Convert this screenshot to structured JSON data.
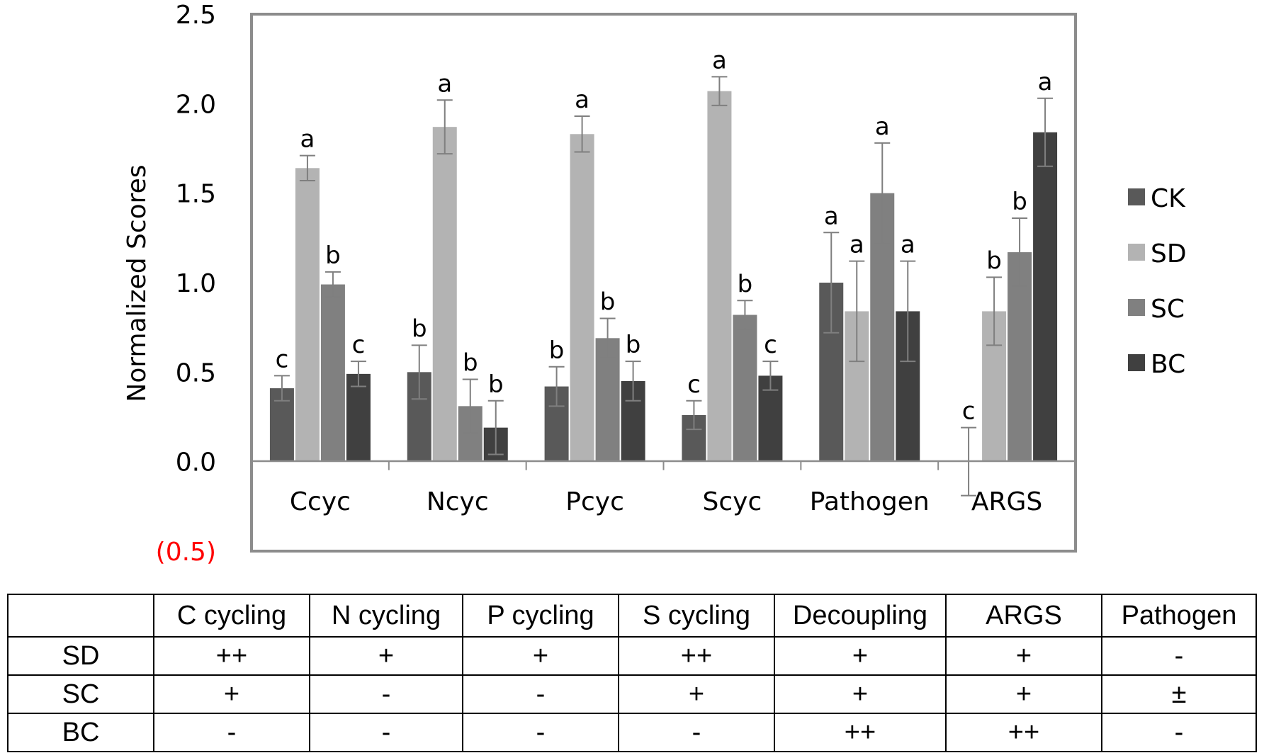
{
  "chart_data": {
    "type": "bar",
    "title": "",
    "xlabel": "",
    "ylabel": "Normalized Scores",
    "ylim": [
      -0.5,
      2.5
    ],
    "yticks": [
      "2.5",
      "2.0",
      "1.5",
      "1.0",
      "0.5",
      "0.0",
      "(0.5)"
    ],
    "ytick_values": [
      2.5,
      2.0,
      1.5,
      1.0,
      0.5,
      0.0,
      -0.5
    ],
    "negative_tick_color": "#ff0000",
    "categories": [
      "Ccyc",
      "Ncyc",
      "Pcyc",
      "Scyc",
      "Pathogen",
      "ARGS"
    ],
    "legend_position": "right",
    "series": [
      {
        "name": "CK",
        "color": "#595959",
        "values": [
          0.41,
          0.5,
          0.42,
          0.26,
          1.0,
          0.0
        ],
        "errors": [
          0.07,
          0.15,
          0.11,
          0.08,
          0.28,
          0.19
        ],
        "letters": [
          "c",
          "b",
          "b",
          "c",
          "a",
          "c"
        ]
      },
      {
        "name": "SD",
        "color": "#b3b3b3",
        "values": [
          1.64,
          1.87,
          1.83,
          2.07,
          0.84,
          0.84
        ],
        "errors": [
          0.07,
          0.15,
          0.1,
          0.08,
          0.28,
          0.19
        ],
        "letters": [
          "a",
          "a",
          "a",
          "a",
          "a",
          "b"
        ]
      },
      {
        "name": "SC",
        "color": "#808080",
        "values": [
          0.99,
          0.31,
          0.69,
          0.82,
          1.5,
          1.17
        ],
        "errors": [
          0.07,
          0.15,
          0.11,
          0.08,
          0.28,
          0.19
        ],
        "letters": [
          "b",
          "b",
          "b",
          "b",
          "a",
          "b"
        ]
      },
      {
        "name": "BC",
        "color": "#404040",
        "values": [
          0.49,
          0.19,
          0.45,
          0.48,
          0.84,
          1.84
        ],
        "errors": [
          0.07,
          0.15,
          0.11,
          0.08,
          0.28,
          0.19
        ],
        "letters": [
          "c",
          "b",
          "b",
          "c",
          "a",
          "a"
        ]
      }
    ]
  },
  "table": {
    "columns": [
      "",
      "C cycling",
      "N cycling",
      "P cycling",
      "S cycling",
      "Decoupling",
      "ARGS",
      "Pathogen"
    ],
    "rows": [
      {
        "label": "SD",
        "cells": [
          "++",
          "+",
          "+",
          "++",
          "+",
          "+",
          "-"
        ]
      },
      {
        "label": "SC",
        "cells": [
          "+",
          "-",
          "-",
          "+",
          "+",
          "+",
          "±"
        ]
      },
      {
        "label": "BC",
        "cells": [
          "-",
          "-",
          "-",
          "-",
          "++",
          "++",
          "-"
        ]
      }
    ]
  }
}
